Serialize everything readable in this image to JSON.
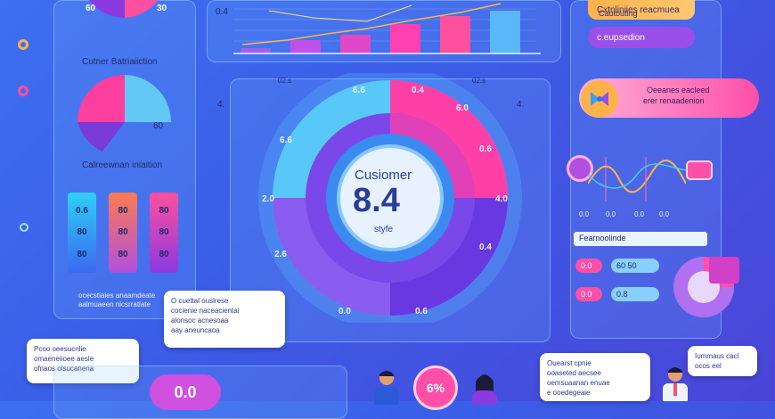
{
  "left": {
    "pie_top_labels": [
      "60",
      "30"
    ],
    "section1_title": "Cutner Batriaiiction",
    "half_pie_label": "60",
    "section2_title": "Calreewnan iniaition",
    "bars": [
      {
        "labels": [
          "0.6",
          "80",
          "80"
        ],
        "color_top": "#2fd0f5",
        "color_bottom": "#3a6af0"
      },
      {
        "labels": [
          "80",
          "80",
          "80"
        ],
        "color_top": "#ff7a50",
        "color_bottom": "#b050e0"
      },
      {
        "labels": [
          "80",
          "80",
          "80"
        ],
        "color_top": "#ff4fa0",
        "color_bottom": "#8a3ae0"
      }
    ],
    "footer_lines": [
      "ocecstiaies anaamdeate",
      "aalmuaeen nicsrratlate"
    ]
  },
  "center": {
    "top_axis_label": "0.4",
    "bar_values": [
      0.1,
      0.25,
      0.35,
      0.55,
      0.7,
      0.8
    ],
    "donut_title": "Cusiomer",
    "donut_value": "8.4",
    "donut_subtitle": "styfe",
    "corner_label_left": "02.s",
    "corner_label_right": "02.s",
    "side_label_left": "4.",
    "side_label_right": "4.",
    "ring_labels": {
      "top_left": "6.6",
      "top_right": "0.4",
      "left": "6.6",
      "right_upper": "6.0",
      "mid_left": "2.0",
      "mid_right": "0.6",
      "lower_left": "2.6",
      "lower_right": "4.0",
      "bottom_left": "0.0",
      "bottom_right": "0.6"
    },
    "ring_tag": "0.4"
  },
  "right": {
    "top_pill": "Cxtnliniies reacmuea",
    "top_pill_sub": "Cautouting",
    "second_pill": "c.eupsedion",
    "promo_line1": "Oeeanes eacleed",
    "promo_line2": "erer renaadenion",
    "wave_labels": [
      "0.0",
      "0.0",
      "0.0",
      "0.0"
    ],
    "info_bar": "Fearnoolinde",
    "rows": [
      {
        "tag": "0.0",
        "value": "60 50"
      },
      {
        "tag": "0.0",
        "value": "0.8"
      }
    ]
  },
  "bubbles": {
    "center_bubble": [
      "O cuettal ouslrese",
      "cocienie naceacientai",
      "alonsoc acnesoaa",
      "aay aneuncaoa"
    ],
    "left_bubble": [
      "Pcoo oeesucnlie",
      "omaeneiioee aesle",
      "ofnaos olsucanena"
    ],
    "right_bubble": [
      "Ouearst cpnie",
      "ooaseted aecsee",
      "oemsuaanan enuae",
      "e ooedegeaie"
    ],
    "far_right_bubble": [
      "Iummaus cacl",
      "ocos eel"
    ]
  },
  "bottom": {
    "badge_left": "0.0",
    "badge_center": "6%"
  }
}
